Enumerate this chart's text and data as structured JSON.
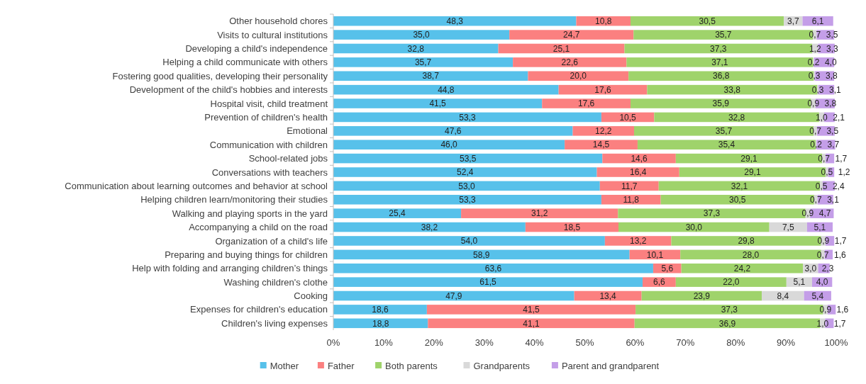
{
  "chart_data": {
    "type": "bar",
    "orientation": "horizontal",
    "stacked": true,
    "legend": "bottom",
    "grid": false,
    "categories": [
      "Other household chores",
      "Visits to cultural institutions",
      "Developing a child's independence",
      "Helping a child communicate with others",
      "Fostering good qualities, developing their personality",
      "Development of the child's hobbies and interests",
      "Hospital visit, child treatment",
      "Prevention of children's health",
      "Emotional",
      "Communication with children",
      "School-related jobs",
      "Conversations with teachers",
      "Communication about learning outcomes and behavior at school",
      "Helping children learn/monitoring their studies",
      "Walking and playing sports in the yard",
      "Accompanying a child on the road",
      "Organization of a child's life",
      "Preparing and buying things for children",
      "Help with folding and arranging children’s things",
      "Washing children's clothe",
      "Cooking",
      "Expenses for children's education",
      "Children's living expenses"
    ],
    "xlim": [
      0,
      100
    ],
    "xticks": [
      {
        "value": 0,
        "label": "0%"
      },
      {
        "value": 10,
        "label": "10%"
      },
      {
        "value": 20,
        "label": "20%"
      },
      {
        "value": 30,
        "label": "30%"
      },
      {
        "value": 40,
        "label": "40%"
      },
      {
        "value": 50,
        "label": "50%"
      },
      {
        "value": 60,
        "label": "60%"
      },
      {
        "value": 70,
        "label": "70%"
      },
      {
        "value": 80,
        "label": "80%"
      },
      {
        "value": 90,
        "label": "90%"
      },
      {
        "value": 100,
        "label": "100%"
      }
    ],
    "series": [
      {
        "name": "Mother",
        "color": "#57c1ea",
        "values": [
          48.3,
          35.0,
          32.8,
          35.7,
          38.7,
          44.8,
          41.5,
          53.3,
          47.6,
          46.0,
          53.5,
          52.4,
          53.0,
          53.3,
          25.4,
          38.2,
          54.0,
          58.9,
          63.6,
          61.5,
          47.9,
          18.6,
          18.8
        ],
        "value_labels": [
          "48,3",
          "35,0",
          "32,8",
          "35,7",
          "38,7",
          "44,8",
          "41,5",
          "53,3",
          "47,6",
          "46,0",
          "53,5",
          "52,4",
          "53,0",
          "53,3",
          "25,4",
          "38,2",
          "54,0",
          "58,9",
          "63,6",
          "61,5",
          "47,9",
          "18,6",
          "18,8"
        ]
      },
      {
        "name": "Father",
        "color": "#fb8080",
        "values": [
          10.8,
          24.7,
          25.1,
          22.6,
          20.0,
          17.6,
          17.6,
          10.5,
          12.2,
          14.5,
          14.6,
          16.4,
          11.7,
          11.8,
          31.2,
          18.5,
          13.2,
          10.1,
          5.6,
          6.6,
          13.4,
          41.5,
          41.1
        ],
        "value_labels": [
          "10,8",
          "24,7",
          "25,1",
          "22,6",
          "20,0",
          "17,6",
          "17,6",
          "10,5",
          "12,2",
          "14,5",
          "14,6",
          "16,4",
          "11,7",
          "11,8",
          "31,2",
          "18,5",
          "13,2",
          "10,1",
          "5,6",
          "6,6",
          "13,4",
          "41,5",
          "41,1"
        ]
      },
      {
        "name": "Both parents",
        "color": "#9fd36b",
        "values": [
          30.5,
          35.7,
          37.3,
          37.1,
          36.8,
          33.8,
          35.9,
          32.8,
          35.7,
          35.4,
          29.1,
          29.1,
          32.1,
          30.5,
          37.3,
          30.0,
          29.8,
          28.0,
          24.2,
          22.0,
          23.9,
          37.3,
          36.9
        ],
        "value_labels": [
          "30,5",
          "35,7",
          "37,3",
          "37,1",
          "36,8",
          "33,8",
          "35,9",
          "32,8",
          "35,7",
          "35,4",
          "29,1",
          "29,1",
          "32,1",
          "30,5",
          "37,3",
          "30,0",
          "29,8",
          "28,0",
          "24,2",
          "22,0",
          "23,9",
          "37,3",
          "36,9"
        ]
      },
      {
        "name": "Grandparents",
        "color": "#d9d9d9",
        "values": [
          3.7,
          0.7,
          1.2,
          0.2,
          0.3,
          0.3,
          0.9,
          1.0,
          0.7,
          0.2,
          0.7,
          0.5,
          0.5,
          0.7,
          0.9,
          7.5,
          0.9,
          0.7,
          3.0,
          5.1,
          8.4,
          0.9,
          1.0
        ],
        "value_labels": [
          "3,7",
          "0,7",
          "1,2",
          "0,2",
          "0,3",
          "0,3",
          "0,9",
          "1,0",
          "0,7",
          "0,2",
          "0,7",
          "0,5",
          "0,5",
          "0,7",
          "0,9",
          "7,5",
          "0,9",
          "0,7",
          "3,0",
          "5,1",
          "8,4",
          "0,9",
          "1,0"
        ]
      },
      {
        "name": "Parent and grandparent",
        "color": "#c49ee8",
        "values": [
          6.1,
          3.5,
          3.3,
          4.0,
          3.8,
          3.1,
          3.8,
          2.1,
          3.5,
          3.7,
          1.7,
          1.2,
          2.4,
          3.1,
          4.7,
          5.1,
          1.7,
          1.6,
          2.3,
          4.0,
          5.4,
          1.6,
          1.7
        ],
        "value_labels": [
          "6,1",
          "3,5",
          "3,3",
          "4,0",
          "3,8",
          "3,1",
          "3,8",
          "2,1",
          "3,5",
          "3,7",
          "1,7",
          "1,2",
          "2,4",
          "3,1",
          "4,7",
          "5,1",
          "1,7",
          "1,6",
          "2,3",
          "4,0",
          "5,4",
          "1,6",
          "1,7"
        ]
      }
    ]
  }
}
